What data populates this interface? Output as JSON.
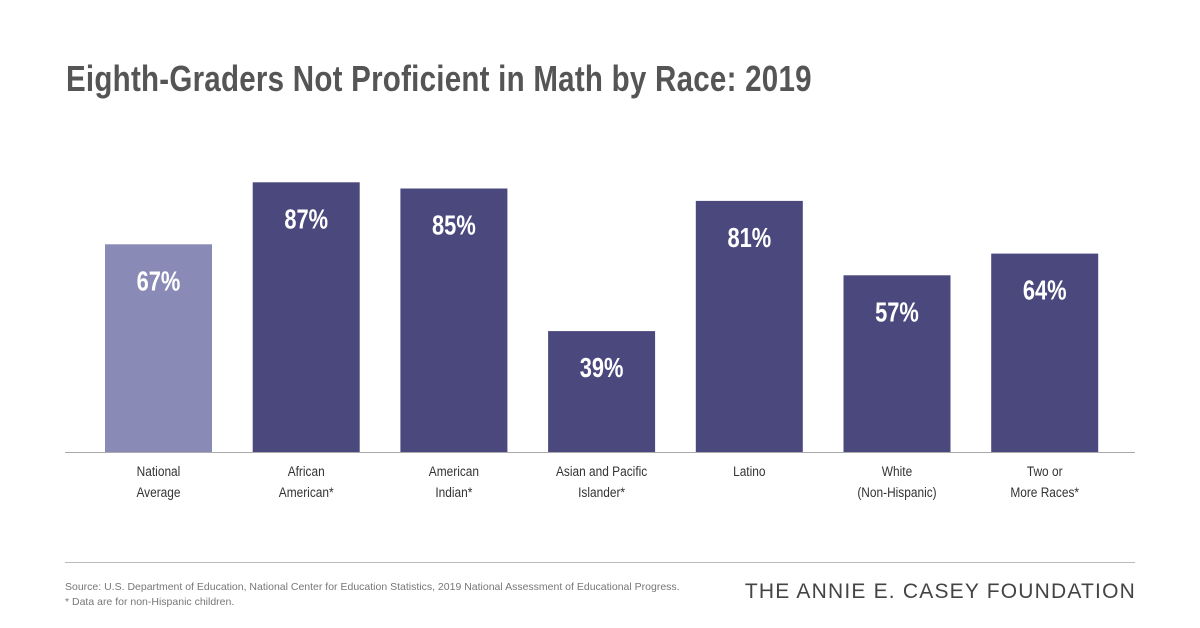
{
  "chart_data": {
    "type": "bar",
    "title": "Eighth-Graders Not Proficient in Math by Race: 2019",
    "categories": [
      [
        "National",
        "Average"
      ],
      [
        "African",
        "American*"
      ],
      [
        "American",
        "Indian*"
      ],
      [
        "Asian and Pacific",
        "Islander*"
      ],
      [
        "Latino"
      ],
      [
        "White",
        "(Non-Hispanic)"
      ],
      [
        "Two or",
        "More Races*"
      ]
    ],
    "values": [
      67,
      87,
      85,
      39,
      81,
      57,
      64
    ],
    "data_labels": [
      "67%",
      "87%",
      "85%",
      "39%",
      "81%",
      "57%",
      "64%"
    ],
    "unit": "%",
    "ylim": [
      0,
      100
    ],
    "grid": false,
    "colors": [
      "#8a8ab6",
      "#4b487e",
      "#4b487e",
      "#4b487e",
      "#4b487e",
      "#4b487e",
      "#4b487e"
    ]
  },
  "footer": {
    "source": "Source: U.S. Department of Education, National Center for Education Statistics, 2019 National Assessment of Educational Progress.",
    "note": "* Data are for non-Hispanic children.",
    "logo": "THE ANNIE E. CASEY FOUNDATION"
  }
}
